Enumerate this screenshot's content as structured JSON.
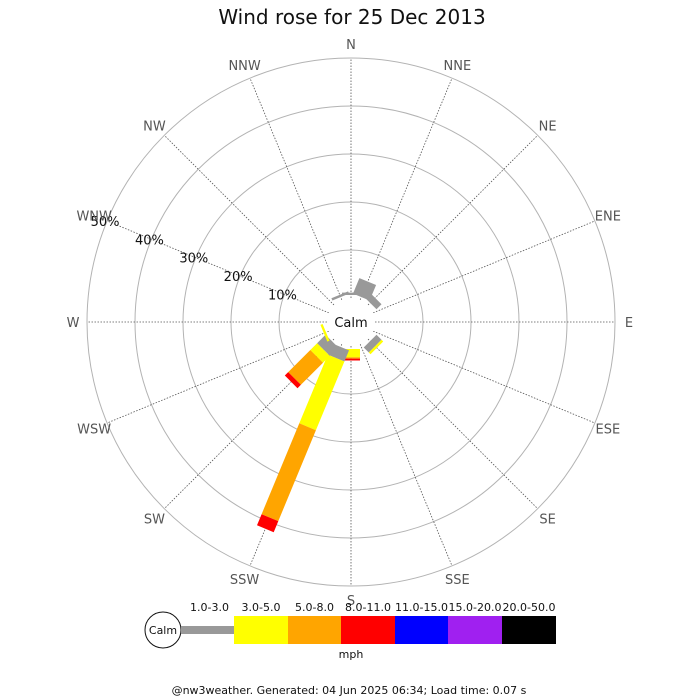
{
  "chart_data": {
    "type": "wind-rose",
    "title": "Wind rose for 25 Dec 2013",
    "center_label": "Calm",
    "directions": [
      "N",
      "NNE",
      "NE",
      "ENE",
      "E",
      "ESE",
      "SE",
      "SSE",
      "S",
      "SSW",
      "SW",
      "WSW",
      "W",
      "WNW",
      "NW",
      "NNW"
    ],
    "ring_labels": [
      "10%",
      "20%",
      "30%",
      "40%",
      "50%"
    ],
    "ring_values": [
      10,
      20,
      30,
      40,
      50
    ],
    "radial_max": 50,
    "unit": "mph",
    "speed_bins": [
      {
        "label": "1.0-3.0",
        "color": "#999999"
      },
      {
        "label": "3.0-5.0",
        "color": "#ffff00"
      },
      {
        "label": "5.0-8.0",
        "color": "#ffa500"
      },
      {
        "label": "8.0-11.0",
        "color": "#ff0000"
      },
      {
        "label": "11.0-15.0",
        "color": "#0000ff"
      },
      {
        "label": "15.0-20.0",
        "color": "#a020f0"
      },
      {
        "label": "20.0-50.0",
        "color": "#000000"
      }
    ],
    "calm_color": "#ffffff",
    "grid_color": "#b3b3b3",
    "series": [
      {
        "direction": "N",
        "values": [
          0.5,
          0,
          0,
          0,
          0,
          0,
          0
        ]
      },
      {
        "direction": "NNE",
        "values": [
          3.5,
          0,
          0,
          0,
          0,
          0,
          0
        ]
      },
      {
        "direction": "NE",
        "values": [
          1.5,
          0,
          0,
          0,
          0,
          0,
          0
        ]
      },
      {
        "direction": "ENE",
        "values": [
          0,
          0,
          0,
          0,
          0,
          0,
          0
        ]
      },
      {
        "direction": "E",
        "values": [
          0,
          0,
          0,
          0,
          0,
          0,
          0
        ]
      },
      {
        "direction": "ESE",
        "values": [
          0,
          0,
          0,
          0,
          0,
          0,
          0
        ]
      },
      {
        "direction": "SE",
        "values": [
          1.5,
          0.5,
          0,
          0,
          0,
          0,
          0
        ]
      },
      {
        "direction": "SSE",
        "values": [
          0,
          0,
          0,
          0,
          0,
          0,
          0
        ]
      },
      {
        "direction": "S",
        "values": [
          0,
          1.7,
          0.3,
          0.4,
          0,
          0,
          0
        ]
      },
      {
        "direction": "SSW",
        "values": [
          2.5,
          15.5,
          20.5,
          2.5,
          0,
          0,
          0
        ]
      },
      {
        "direction": "SW",
        "values": [
          2.5,
          2.0,
          6.5,
          1.0,
          0,
          0,
          0
        ]
      },
      {
        "direction": "WSW",
        "values": [
          0,
          0.5,
          0,
          0,
          0,
          0,
          0
        ]
      },
      {
        "direction": "W",
        "values": [
          0,
          0,
          0,
          0,
          0,
          0,
          0
        ]
      },
      {
        "direction": "WNW",
        "values": [
          0,
          0,
          0,
          0,
          0,
          0,
          0
        ]
      },
      {
        "direction": "NW",
        "values": [
          0,
          0,
          0,
          0,
          0,
          0,
          0
        ]
      },
      {
        "direction": "NNW",
        "values": [
          0.5,
          0,
          0,
          0,
          0,
          0,
          0
        ]
      }
    ]
  },
  "footer": "@nw3weather. Generated: 04 Jun 2025 06:34; Load time: 0.07 s"
}
